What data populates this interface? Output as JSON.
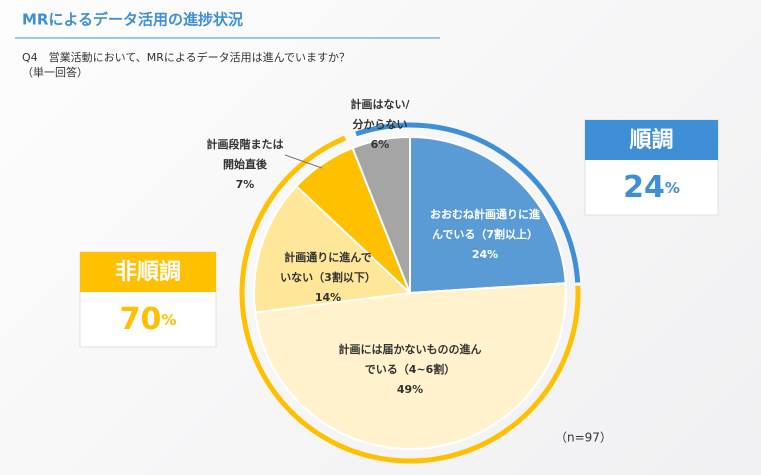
{
  "chart_data": {
    "type": "pie",
    "title": "MRによるデータ活用の進捗状況",
    "subtitle": "Q4　営業活動において、MRによるデータ活用は進んでいますか？",
    "subtitle2": "（単一回答）",
    "note": "（n=97）",
    "categories": [
      [
        "おおむね計画通りに進",
        "んでいる（7割以上）"
      ],
      [
        "計画には届かないものの進ん",
        "でいる（4~6割）"
      ],
      [
        "計画通りに進んで",
        "いない（3割以下）"
      ],
      [
        "計画段階または",
        "開始直後"
      ],
      [
        "計画はない/",
        "分からない"
      ]
    ],
    "values": [
      24,
      49,
      14,
      7,
      6
    ],
    "value_labels": [
      "24%",
      "49%",
      "14%",
      "7%",
      "6%"
    ],
    "colors": [
      "#5b9bd5",
      "#fff2cc",
      "#ffe699",
      "#ffc000",
      "#a5a5a5"
    ],
    "summary": [
      {
        "label": "順調",
        "value": 24,
        "unit": "%",
        "color": "#3f8fd6"
      },
      {
        "label": "非順調",
        "value": 70,
        "unit": "%",
        "color": "#ffc000"
      }
    ]
  }
}
